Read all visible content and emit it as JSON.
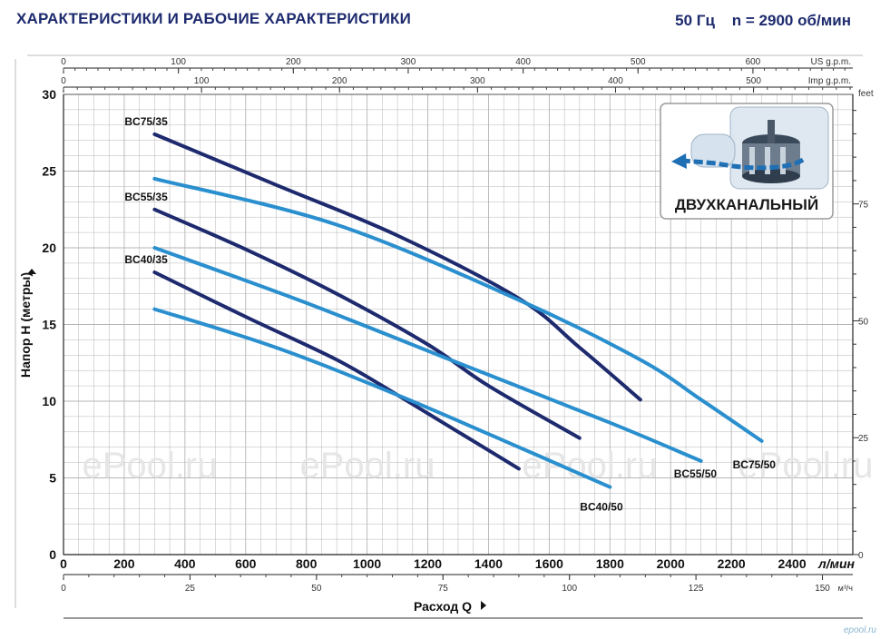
{
  "header": {
    "title": "ХАРАКТЕРИСТИКИ И РАБОЧИЕ ХАРАКТЕРИСТИКИ",
    "spec": "50 Гц    n = 2900 об/мин"
  },
  "colors": {
    "dark_series": "#1e2a6e",
    "light_series": "#2a8fce",
    "grid": "#b5b5b5",
    "text": "#1d2a6e"
  },
  "inset": {
    "label": "ДВУХКАНАЛЬНЫЙ",
    "icon": "twin-channel-impeller-icon"
  },
  "watermarks": [
    "ePool.ru",
    "ePool.ru",
    "ePool.ru",
    "ePool.ru"
  ],
  "corner_logo": "epool.ru",
  "chart_data": {
    "type": "line",
    "xlabel": "Расход Q",
    "ylabel": "Напор H (метры)",
    "x_unit": "л/мин",
    "x_range": [
      0,
      2600
    ],
    "ylim": [
      0,
      30
    ],
    "grid": true,
    "x_ticks": [
      "0",
      "200",
      "400",
      "600",
      "800",
      "1000",
      "1200",
      "1400",
      "1600",
      "1800",
      "2000",
      "2200",
      "2400"
    ],
    "y_ticks": [
      "0",
      "5",
      "10",
      "15",
      "20",
      "25",
      "30"
    ],
    "secondary_axes": {
      "us_gpm": {
        "unit": "US g.p.m.",
        "ticks": [
          "0",
          "100",
          "200",
          "300",
          "400",
          "500",
          "600"
        ]
      },
      "imp_gpm": {
        "unit": "Imp g.p.m.",
        "ticks": [
          "0",
          "100",
          "200",
          "300",
          "400",
          "500"
        ]
      },
      "m3h": {
        "unit": "м³/ч",
        "ticks": [
          "0",
          "25",
          "50",
          "75",
          "100",
          "125",
          "150"
        ]
      },
      "feet": {
        "unit": "feet",
        "ticks": [
          "0",
          "25",
          "50",
          "75"
        ]
      }
    },
    "series": [
      {
        "name": "BC75/35",
        "style": "dark",
        "x": [
          300,
          700,
          1100,
          1500,
          1700,
          1900
        ],
        "y": [
          27.4,
          24.1,
          20.8,
          16.7,
          13.5,
          10.1
        ]
      },
      {
        "name": "BC55/35",
        "style": "dark",
        "x": [
          300,
          600,
          900,
          1200,
          1400,
          1700
        ],
        "y": [
          22.5,
          19.9,
          17.0,
          13.7,
          11.0,
          7.6
        ]
      },
      {
        "name": "BC40/35",
        "style": "dark",
        "x": [
          300,
          600,
          900,
          1100,
          1300,
          1500
        ],
        "y": [
          18.4,
          15.5,
          12.7,
          10.4,
          8.0,
          5.6
        ]
      },
      {
        "name": "BC75/50",
        "style": "light",
        "x": [
          300,
          900,
          1500,
          1900,
          2100,
          2300
        ],
        "y": [
          24.5,
          21.5,
          16.6,
          12.7,
          10.1,
          7.4
        ]
      },
      {
        "name": "BC55/50",
        "style": "light",
        "x": [
          300,
          800,
          1300,
          1800,
          2100
        ],
        "y": [
          20.0,
          16.4,
          12.5,
          8.6,
          6.1
        ]
      },
      {
        "name": "BC40/50",
        "style": "light",
        "x": [
          300,
          700,
          1100,
          1500,
          1800
        ],
        "y": [
          16.0,
          13.5,
          10.4,
          7.0,
          4.4
        ]
      }
    ]
  }
}
